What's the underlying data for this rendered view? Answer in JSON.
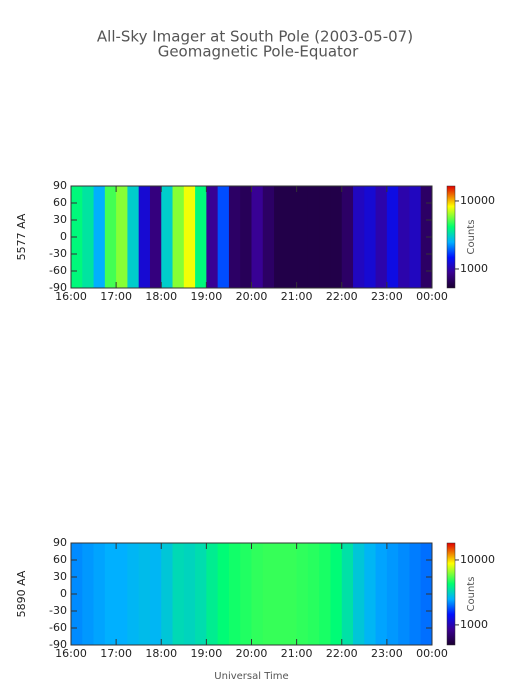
{
  "chart_data": [
    {
      "type": "heatmap",
      "title": "All-Sky Imager at South Pole (2003-05-07)",
      "subtitle": "Geomagnetic Pole-Equator",
      "ylabel": "5577 AA",
      "colorbar_label": "Counts",
      "log_color": true,
      "x": [
        16.125,
        16.375,
        16.625,
        16.875,
        17.125,
        17.375,
        17.625,
        17.875,
        18.125,
        18.375,
        18.625,
        18.875,
        19.125,
        19.375,
        19.625,
        19.875,
        20.125,
        20.375,
        20.625,
        20.875,
        21.125,
        21.375,
        21.625,
        21.875,
        22.125,
        22.375,
        22.625,
        22.875,
        23.125,
        23.375,
        23.625,
        23.875
      ],
      "values": [
        4000,
        3500,
        2500,
        5000,
        6000,
        3000,
        1200,
        800,
        3000,
        6000,
        8000,
        4000,
        900,
        1800,
        700,
        650,
        900,
        700,
        600,
        600,
        600,
        600,
        600,
        600,
        700,
        1100,
        1200,
        1000,
        1300,
        1000,
        1100,
        700
      ],
      "xlim": [
        16,
        24
      ],
      "ylim": [
        -90,
        90
      ],
      "xticks": [
        {
          "value": 16,
          "label": "16:00"
        },
        {
          "value": 17,
          "label": "17:00"
        },
        {
          "value": 18,
          "label": "18:00"
        },
        {
          "value": 19,
          "label": "19:00"
        },
        {
          "value": 20,
          "label": "20:00"
        },
        {
          "value": 21,
          "label": "21:00"
        },
        {
          "value": 22,
          "label": "22:00"
        },
        {
          "value": 23,
          "label": "23:00"
        },
        {
          "value": 24,
          "label": "00:00"
        }
      ],
      "yticks": [
        90,
        60,
        30,
        0,
        -30,
        -60,
        -90
      ],
      "clim": [
        525,
        16600
      ],
      "cticks": [
        10000,
        1000
      ]
    },
    {
      "type": "heatmap",
      "ylabel": "5890 AA",
      "xlabel": "Universal Time",
      "colorbar_label": "Counts",
      "log_color": true,
      "x": [
        16.125,
        16.375,
        16.625,
        16.875,
        17.125,
        17.375,
        17.625,
        17.875,
        18.125,
        18.375,
        18.625,
        18.875,
        19.125,
        19.375,
        19.625,
        19.875,
        20.125,
        20.375,
        20.625,
        20.875,
        21.125,
        21.375,
        21.625,
        21.875,
        22.125,
        22.375,
        22.625,
        22.875,
        23.125,
        23.375,
        23.625,
        23.875
      ],
      "values": [
        2200,
        2300,
        2400,
        2500,
        2500,
        2600,
        2700,
        2600,
        2900,
        3300,
        3200,
        3400,
        3800,
        4200,
        4500,
        4700,
        4900,
        5000,
        5000,
        5000,
        4900,
        4800,
        4600,
        4200,
        3500,
        2900,
        2600,
        2400,
        2300,
        2200,
        2100,
        2000
      ],
      "xlim": [
        16,
        24
      ],
      "ylim": [
        -90,
        90
      ],
      "xticks": [
        {
          "value": 16,
          "label": "16:00"
        },
        {
          "value": 17,
          "label": "17:00"
        },
        {
          "value": 18,
          "label": "18:00"
        },
        {
          "value": 19,
          "label": "19:00"
        },
        {
          "value": 20,
          "label": "20:00"
        },
        {
          "value": 21,
          "label": "21:00"
        },
        {
          "value": 22,
          "label": "22:00"
        },
        {
          "value": 23,
          "label": "23:00"
        },
        {
          "value": 24,
          "label": "00:00"
        }
      ],
      "yticks": [
        90,
        60,
        30,
        0,
        -30,
        -60,
        -90
      ],
      "clim": [
        490,
        18250
      ],
      "cticks": [
        10000,
        1000
      ]
    }
  ]
}
